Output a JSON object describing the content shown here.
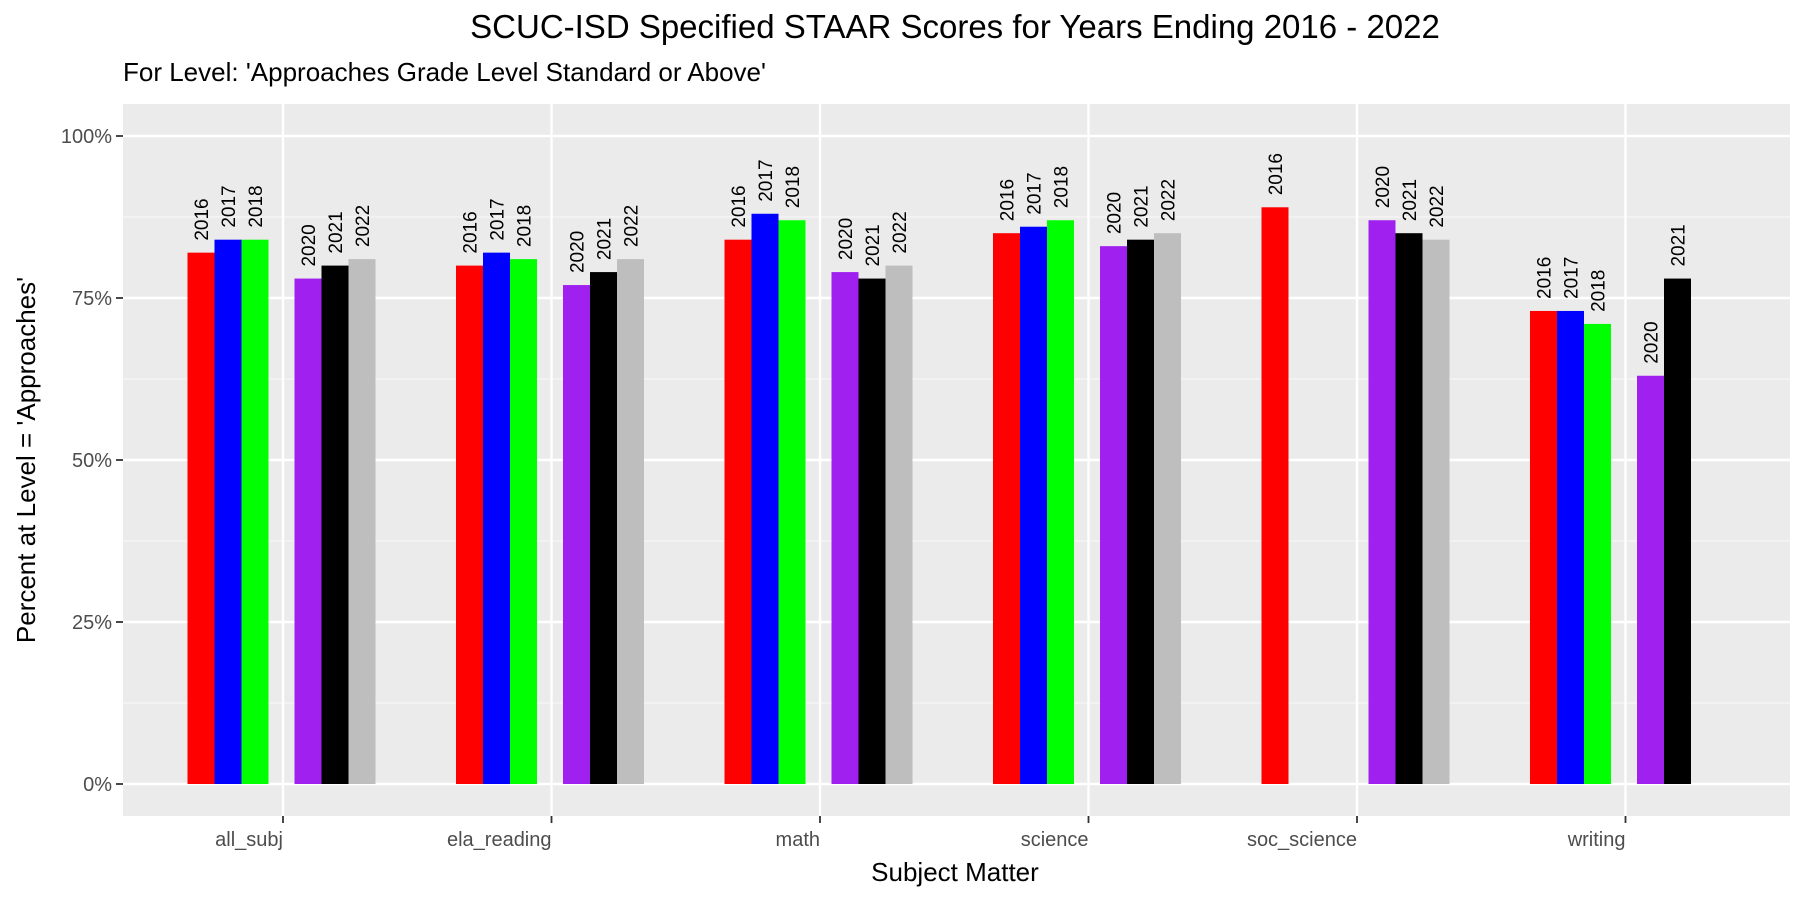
{
  "chart_data": {
    "type": "bar",
    "title": "SCUC-ISD Specified STAAR Scores for Years Ending 2016 - 2022",
    "subtitle": "For Level: 'Approaches Grade Level Standard or Above'",
    "xlabel": "Subject Matter",
    "ylabel": "Percent at Level = 'Approaches'",
    "ylim": [
      0,
      1.0
    ],
    "y_ticks": [
      0,
      0.25,
      0.5,
      0.75,
      1.0
    ],
    "y_tick_labels": [
      "0%",
      "25%",
      "50%",
      "75%",
      "100%"
    ],
    "grid": true,
    "legend": "none",
    "categories": [
      "all_subj",
      "ela_reading",
      "math",
      "science",
      "soc_science",
      "writing"
    ],
    "series_colors": {
      "2016": "#ff0000",
      "2017": "#0000ff",
      "2018": "#00ff00",
      "2020": "#a020f0",
      "2021": "#000000",
      "2022": "#bebebe"
    },
    "series": [
      {
        "category": "all_subj",
        "year": "2016",
        "value": 0.82
      },
      {
        "category": "all_subj",
        "year": "2017",
        "value": 0.84
      },
      {
        "category": "all_subj",
        "year": "2018",
        "value": 0.84
      },
      {
        "category": "all_subj",
        "year": "2020",
        "value": 0.78
      },
      {
        "category": "all_subj",
        "year": "2021",
        "value": 0.8
      },
      {
        "category": "all_subj",
        "year": "2022",
        "value": 0.81
      },
      {
        "category": "ela_reading",
        "year": "2016",
        "value": 0.8
      },
      {
        "category": "ela_reading",
        "year": "2017",
        "value": 0.82
      },
      {
        "category": "ela_reading",
        "year": "2018",
        "value": 0.81
      },
      {
        "category": "ela_reading",
        "year": "2020",
        "value": 0.77
      },
      {
        "category": "ela_reading",
        "year": "2021",
        "value": 0.79
      },
      {
        "category": "ela_reading",
        "year": "2022",
        "value": 0.81
      },
      {
        "category": "math",
        "year": "2016",
        "value": 0.84
      },
      {
        "category": "math",
        "year": "2017",
        "value": 0.88
      },
      {
        "category": "math",
        "year": "2018",
        "value": 0.87
      },
      {
        "category": "math",
        "year": "2020",
        "value": 0.79
      },
      {
        "category": "math",
        "year": "2021",
        "value": 0.78
      },
      {
        "category": "math",
        "year": "2022",
        "value": 0.8
      },
      {
        "category": "science",
        "year": "2016",
        "value": 0.85
      },
      {
        "category": "science",
        "year": "2017",
        "value": 0.86
      },
      {
        "category": "science",
        "year": "2018",
        "value": 0.87
      },
      {
        "category": "science",
        "year": "2020",
        "value": 0.83
      },
      {
        "category": "science",
        "year": "2021",
        "value": 0.84
      },
      {
        "category": "science",
        "year": "2022",
        "value": 0.85
      },
      {
        "category": "soc_science",
        "year": "2016",
        "value": 0.89
      },
      {
        "category": "soc_science",
        "year": "2020",
        "value": 0.87
      },
      {
        "category": "soc_science",
        "year": "2021",
        "value": 0.85
      },
      {
        "category": "soc_science",
        "year": "2022",
        "value": 0.84
      },
      {
        "category": "writing",
        "year": "2016",
        "value": 0.73
      },
      {
        "category": "writing",
        "year": "2017",
        "value": 0.73
      },
      {
        "category": "writing",
        "year": "2018",
        "value": 0.71
      },
      {
        "category": "writing",
        "year": "2020",
        "value": 0.63
      },
      {
        "category": "writing",
        "year": "2021",
        "value": 0.78
      }
    ]
  }
}
